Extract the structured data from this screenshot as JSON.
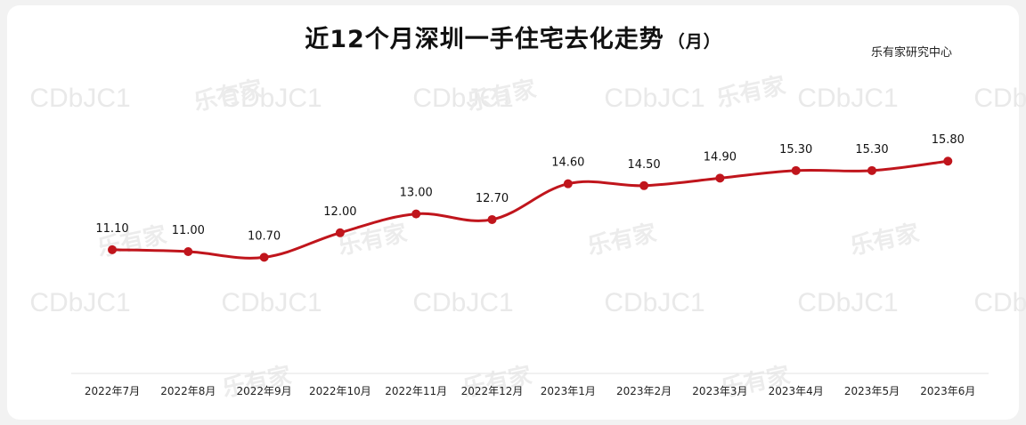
{
  "title": "近12个月深圳一手住宅去化走势",
  "title_unit": "（月）",
  "source": "乐有家研究中心",
  "watermark": {
    "code": "CDbJC1",
    "brand": "乐有家"
  },
  "colors": {
    "line": "#c0151c",
    "marker": "#c0151c",
    "text": "#111111",
    "axis": "#cccccc"
  },
  "chart_data": {
    "type": "line",
    "title": "近12个月深圳一手住宅去化走势（月）",
    "categories": [
      "2022年7月",
      "2022年8月",
      "2022年9月",
      "2022年10月",
      "2022年11月",
      "2022年12月",
      "2023年1月",
      "2023年2月",
      "2023年3月",
      "2023年4月",
      "2023年5月",
      "2023年6月"
    ],
    "values": [
      11.1,
      11.0,
      10.7,
      12.0,
      13.0,
      12.7,
      14.6,
      14.5,
      14.9,
      15.3,
      15.3,
      15.8
    ],
    "labels": [
      "11.10",
      "11.00",
      "10.70",
      "12.00",
      "13.00",
      "12.70",
      "14.60",
      "14.50",
      "14.90",
      "15.30",
      "15.30",
      "15.80"
    ],
    "xlabel": "",
    "ylabel": "",
    "grid": false,
    "legend": "none"
  }
}
